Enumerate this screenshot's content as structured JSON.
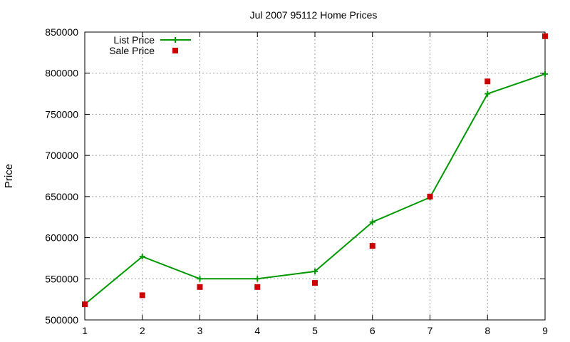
{
  "chart_data": {
    "type": "line",
    "title": "Jul 2007 95112 Home Prices",
    "xlabel": "",
    "ylabel": "Price",
    "x": [
      1,
      2,
      3,
      4,
      5,
      6,
      7,
      8,
      9
    ],
    "xlim": [
      1,
      9
    ],
    "ylim": [
      500000,
      850000
    ],
    "xticks": [
      "1",
      "2",
      "3",
      "4",
      "5",
      "6",
      "7",
      "8",
      "9"
    ],
    "yticks": [
      "500000",
      "550000",
      "600000",
      "650000",
      "700000",
      "750000",
      "800000",
      "850000"
    ],
    "grid": true,
    "legend_position": "top-left",
    "series": [
      {
        "name": "List Price",
        "style": "line-with-plus-markers",
        "color": "#009900",
        "values": [
          519000,
          577000,
          550000,
          550000,
          559000,
          619000,
          649000,
          775000,
          799000
        ]
      },
      {
        "name": "Sale Price",
        "style": "square-points",
        "color": "#cc0000",
        "values": [
          519000,
          530000,
          540000,
          540000,
          545000,
          590000,
          650000,
          790000,
          845000
        ]
      }
    ]
  }
}
